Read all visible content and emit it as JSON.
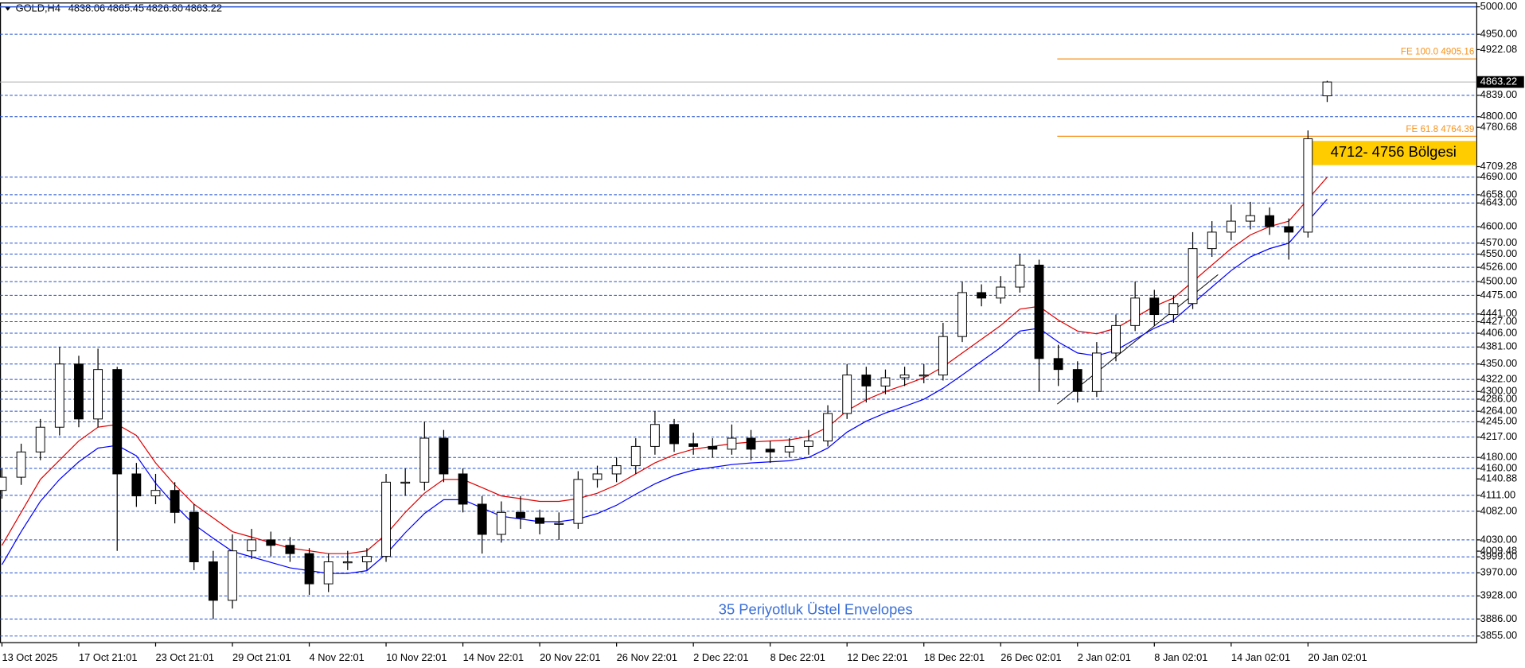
{
  "chart_data": {
    "type": "candlestick",
    "title": "GOLD,H4",
    "quote": [
      {
        "value": 4838.06,
        "label": "4838.06"
      },
      {
        "value": 4865.45,
        "label": "4865.45"
      },
      {
        "value": 4826.8,
        "label": "4826.80"
      },
      {
        "value": 4863.22,
        "label": "4863.22"
      }
    ],
    "categories": [
      "13 Oct 2025",
      null,
      null,
      null,
      "17 Oct 21:01",
      null,
      null,
      null,
      "23 Oct 21:01",
      null,
      null,
      null,
      "29 Oct 21:01",
      null,
      null,
      null,
      "4 Nov 22:01",
      null,
      null,
      null,
      "10 Nov 22:01",
      null,
      null,
      null,
      "14 Nov 22:01",
      null,
      null,
      null,
      "20 Nov 22:01",
      null,
      null,
      null,
      "26 Nov 22:01",
      null,
      null,
      null,
      "2 Dec 22:01",
      null,
      null,
      null,
      "8 Dec 22:01",
      null,
      null,
      null,
      "12 Dec 22:01",
      null,
      null,
      null,
      "18 Dec 22:01",
      null,
      null,
      null,
      "26 Dec 02:01",
      null,
      null,
      null,
      "2 Jan 02:01",
      null,
      null,
      null,
      "8 Jan 02:01",
      null,
      null,
      null,
      "14 Jan 02:01",
      null,
      null,
      null,
      "20 Jan 02:01",
      null
    ],
    "open": [
      4120,
      4144,
      4190,
      4235,
      4350,
      4250,
      4340,
      4150,
      4110,
      4120,
      4080,
      3990,
      3920,
      4010,
      4030,
      4020,
      4005,
      3950,
      3990,
      3990,
      4000,
      4135,
      4135,
      4215,
      4150,
      4095,
      4040,
      4080,
      4070,
      4060,
      4060,
      4140,
      4150,
      4165,
      4200,
      4240,
      4205,
      4200,
      4195,
      4215,
      4195,
      4190,
      4200,
      4210,
      4260,
      4330,
      4310,
      4325,
      4330,
      4330,
      4400,
      4480,
      4470,
      4490,
      4530,
      4360,
      4340,
      4300,
      4370,
      4420,
      4470,
      4440,
      4460,
      4560,
      4590,
      4610,
      4620,
      4600,
      4590,
      4838.06
    ],
    "high": [
      4160,
      4205,
      4250,
      4381,
      4365,
      4378,
      4345,
      4170,
      4150,
      4135,
      4095,
      4010,
      4040,
      4050,
      4045,
      4035,
      4015,
      4005,
      4010,
      4015,
      4150,
      4160,
      4245,
      4230,
      4160,
      4110,
      4100,
      4110,
      4085,
      4080,
      4155,
      4165,
      4180,
      4215,
      4264,
      4250,
      4225,
      4215,
      4240,
      4230,
      4210,
      4215,
      4230,
      4275,
      4350,
      4345,
      4340,
      4345,
      4350,
      4425,
      4500,
      4495,
      4510,
      4550,
      4540,
      4385,
      4355,
      4390,
      4440,
      4500,
      4485,
      4475,
      4590,
      4610,
      4640,
      4645,
      4635,
      4615,
      4775,
      4865.45
    ],
    "low": [
      4105,
      4130,
      4175,
      4220,
      4235,
      4235,
      4010,
      4090,
      4095,
      4060,
      3975,
      3886,
      3905,
      3995,
      4000,
      3990,
      3930,
      3935,
      3975,
      3975,
      3990,
      4110,
      4120,
      4135,
      4080,
      4005,
      4025,
      4050,
      4040,
      4030,
      4050,
      4125,
      4135,
      4150,
      4185,
      4190,
      4185,
      4180,
      4185,
      4175,
      4170,
      4180,
      4185,
      4200,
      4250,
      4280,
      4295,
      4310,
      4315,
      4320,
      4390,
      4455,
      4460,
      4480,
      4300,
      4310,
      4280,
      4290,
      4355,
      4410,
      4420,
      4425,
      4450,
      4545,
      4575,
      4595,
      4585,
      4540,
      4580,
      4826.8
    ],
    "close": [
      4144,
      4190,
      4235,
      4350,
      4250,
      4340,
      4150,
      4110,
      4120,
      4080,
      3990,
      3920,
      4010,
      4030,
      4020,
      4005,
      3950,
      3990,
      3990,
      4000,
      4135,
      4135,
      4215,
      4150,
      4095,
      4040,
      4080,
      4070,
      4060,
      4060,
      4140,
      4150,
      4165,
      4200,
      4240,
      4205,
      4200,
      4195,
      4215,
      4195,
      4190,
      4200,
      4210,
      4260,
      4330,
      4310,
      4325,
      4330,
      4330,
      4400,
      4480,
      4470,
      4490,
      4530,
      4360,
      4340,
      4300,
      4370,
      4420,
      4470,
      4440,
      4460,
      4560,
      4590,
      4610,
      4620,
      4600,
      4590,
      4760,
      4863.22
    ],
    "bull_color": "#ffffff",
    "bear_color": "#000000",
    "envelopes": [
      {
        "color": "#e00000",
        "values": [
          4020,
          4080,
          4140,
          4175,
          4210,
          4235,
          4240,
          4220,
          4170,
          4130,
          4095,
          4070,
          4045,
          4035,
          4025,
          4015,
          4010,
          4005,
          4005,
          4010,
          4040,
          4080,
          4115,
          4140,
          4140,
          4125,
          4110,
          4105,
          4100,
          4100,
          4105,
          4115,
          4130,
          4150,
          4170,
          4185,
          4195,
          4200,
          4205,
          4208,
          4210,
          4212,
          4218,
          4235,
          4265,
          4285,
          4300,
          4312,
          4325,
          4345,
          4370,
          4395,
          4420,
          4450,
          4455,
          4430,
          4410,
          4405,
          4415,
          4435,
          4455,
          4470,
          4500,
          4530,
          4560,
          4585,
          4600,
          4610,
          4650,
          4690
        ]
      },
      {
        "color": "#0000ff",
        "values": [
          3985,
          4045,
          4100,
          4140,
          4172,
          4197,
          4202,
          4183,
          4133,
          4093,
          4058,
          4033,
          4009,
          3999,
          3989,
          3979,
          3974,
          3969,
          3969,
          3974,
          4004,
          4043,
          4078,
          4103,
          4103,
          4088,
          4073,
          4068,
          4063,
          4063,
          4068,
          4078,
          4093,
          4113,
          4132,
          4147,
          4157,
          4162,
          4167,
          4170,
          4172,
          4174,
          4180,
          4197,
          4226,
          4246,
          4261,
          4273,
          4286,
          4306,
          4330,
          4355,
          4380,
          4410,
          4415,
          4390,
          4370,
          4365,
          4375,
          4395,
          4415,
          4430,
          4460,
          4490,
          4520,
          4545,
          4560,
          4570,
          4610,
          4650
        ]
      }
    ],
    "ylim": [
      3843,
      5007
    ],
    "yticks": [
      {
        "value": 4922.08,
        "label": "4922.08"
      },
      {
        "value": 4780.68,
        "label": "4780.68"
      },
      {
        "value": 4709.28,
        "label": "4709.28"
      },
      {
        "value": 4140.88,
        "label": "4140.88"
      },
      {
        "value": 4009.48,
        "label": "4009.48"
      }
    ],
    "levels": [
      {
        "value": 5000,
        "label": "5000.00"
      },
      {
        "value": 4950,
        "label": "4950.00"
      },
      {
        "value": 4839,
        "label": "4839.00"
      },
      {
        "value": 4800,
        "label": "4800.00"
      },
      {
        "value": 4690,
        "label": "4690.00"
      },
      {
        "value": 4658,
        "label": "4658.00"
      },
      {
        "value": 4643,
        "label": "4643.00"
      },
      {
        "value": 4600,
        "label": "4600.00"
      },
      {
        "value": 4570,
        "label": "4570.00"
      },
      {
        "value": 4550,
        "label": "4550.00"
      },
      {
        "value": 4526,
        "label": "4526.00"
      },
      {
        "value": 4500,
        "label": "4500.00"
      },
      {
        "value": 4475,
        "label": "4475.00"
      },
      {
        "value": 4441,
        "label": "4441.00"
      },
      {
        "value": 4427,
        "label": "4427.00"
      },
      {
        "value": 4406,
        "label": "4406.00"
      },
      {
        "value": 4381,
        "label": "4381.00"
      },
      {
        "value": 4350,
        "label": "4350.00"
      },
      {
        "value": 4322,
        "label": "4322.00"
      },
      {
        "value": 4300,
        "label": "4300.00"
      },
      {
        "value": 4286,
        "label": "4286.00"
      },
      {
        "value": 4264,
        "label": "4264.00"
      },
      {
        "value": 4245,
        "label": "4245.00"
      },
      {
        "value": 4217,
        "label": "4217.00"
      },
      {
        "value": 4180,
        "label": "4180.00"
      },
      {
        "value": 4160,
        "label": "4160.00"
      },
      {
        "value": 4111,
        "label": "4111.00"
      },
      {
        "value": 4082,
        "label": "4082.00"
      },
      {
        "value": 4030,
        "label": "4030.00"
      },
      {
        "value": 3999,
        "label": "3999.00"
      },
      {
        "value": 3970,
        "label": "3970.00"
      },
      {
        "value": 3928,
        "label": "3928.00"
      },
      {
        "value": 3886,
        "label": "3886.00"
      },
      {
        "value": 3855,
        "label": "3855.00"
      }
    ],
    "level_color": "#1f4fd0",
    "last_price": 4863.22,
    "fibo": [
      {
        "label": "FE 100.0 4905.16",
        "value": 4905.16
      },
      {
        "label": "FE 61.8 4764.39",
        "value": 4764.39
      }
    ],
    "fibo_color": "#f7931e",
    "zone": {
      "label": "4712- 4756 Bölgesi",
      "low": 4712,
      "high": 4756,
      "color": "#ffcc00"
    },
    "annotation": "35 Periyotluk Üstel Envelopes",
    "annotation_color": "#3a6fd8"
  }
}
